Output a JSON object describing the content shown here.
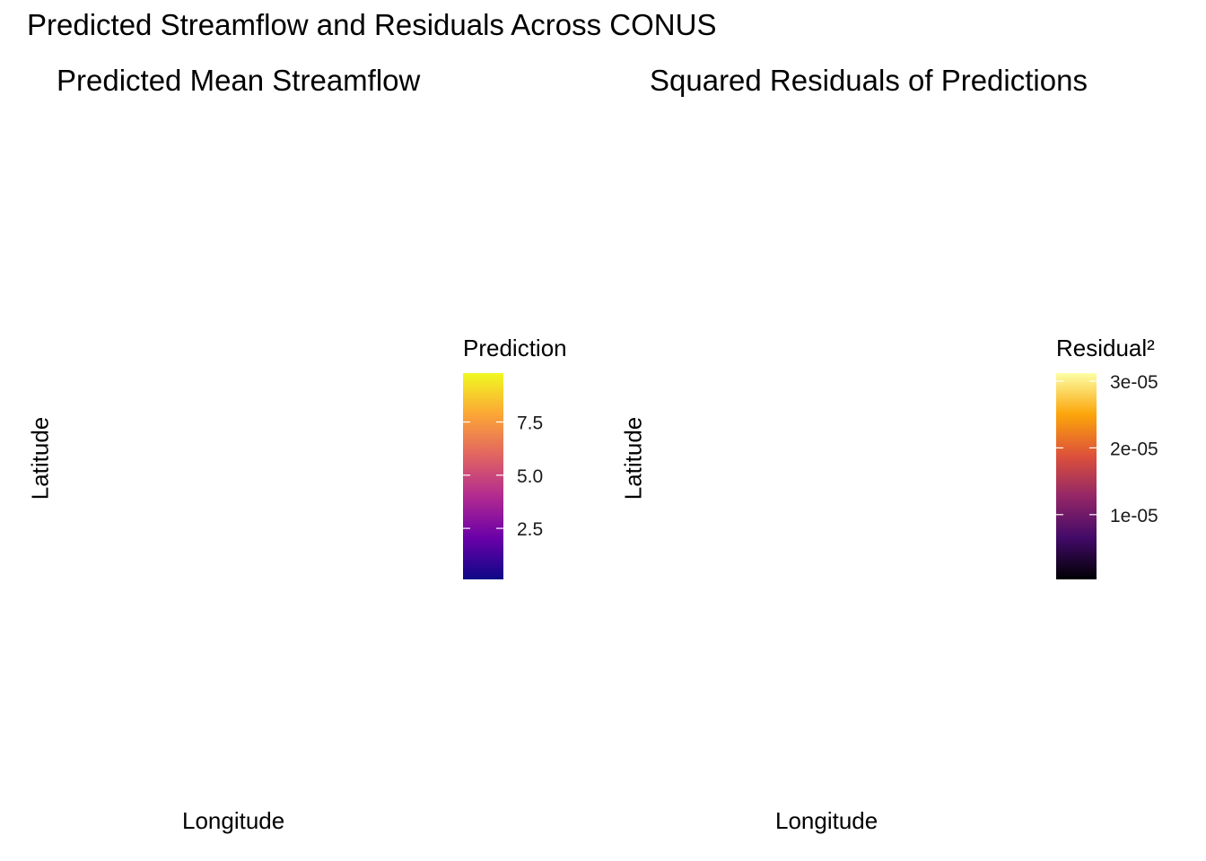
{
  "title": "Predicted Streamflow and Residuals Across CONUS",
  "chart_data": [
    {
      "type": "heatmap",
      "title": "Predicted Mean Streamflow",
      "xlabel": "Longitude",
      "ylabel": "Latitude",
      "legend": {
        "title": "Prediction",
        "placement": "right",
        "palette": "plasma",
        "colors": [
          "#0d0887",
          "#6a00a8",
          "#b12a90",
          "#e16462",
          "#fca636",
          "#f0f921"
        ],
        "range": [
          0.1,
          9.8
        ],
        "ticks": [
          2.5,
          5.0,
          7.5
        ],
        "tick_labels": [
          "2.5",
          "5.0",
          "7.5"
        ]
      },
      "points": []
    },
    {
      "type": "heatmap",
      "title": "Squared Residuals of Predictions",
      "xlabel": "Longitude",
      "ylabel": "Latitude",
      "legend": {
        "title": "Residual²",
        "placement": "right",
        "palette": "inferno",
        "colors": [
          "#000004",
          "#420a68",
          "#932667",
          "#dd513a",
          "#fca50a",
          "#fcffa4"
        ],
        "range": [
          3e-07,
          3.12e-05
        ],
        "ticks": [
          1e-05,
          2e-05,
          3e-05
        ],
        "tick_labels": [
          "1e-05",
          "2e-05",
          "3e-05"
        ]
      },
      "points": []
    }
  ]
}
